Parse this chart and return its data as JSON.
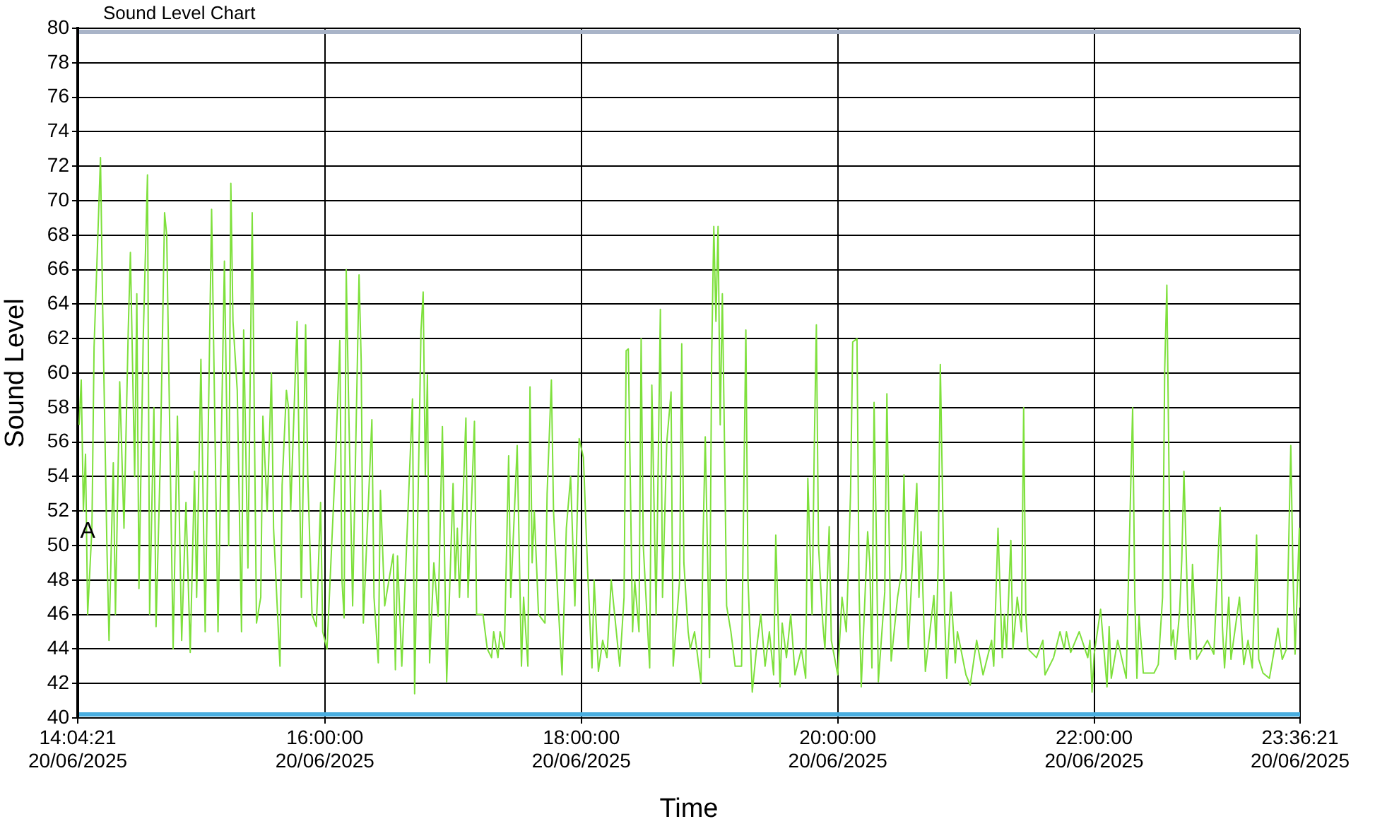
{
  "chart_data": {
    "type": "line",
    "title": "Sound Level Chart",
    "xlabel": "Time",
    "ylabel": "Sound Level",
    "x": [
      "2025-06-20T14:05",
      "2025-06-20T14:06",
      "2025-06-20T14:07",
      "2025-06-20T14:08",
      "2025-06-20T14:09",
      "2025-06-20T14:11",
      "2025-06-20T14:12",
      "2025-06-20T14:15",
      "2025-06-20T14:16",
      "2025-06-20T14:18",
      "2025-06-20T14:19",
      "2025-06-20T14:21",
      "2025-06-20T14:22",
      "2025-06-20T14:24",
      "2025-06-20T14:26",
      "2025-06-20T14:28",
      "2025-06-20T14:29",
      "2025-06-20T14:31",
      "2025-06-20T14:32",
      "2025-06-20T14:33",
      "2025-06-20T14:35",
      "2025-06-20T14:37",
      "2025-06-20T14:38",
      "2025-06-20T14:40",
      "2025-06-20T14:41",
      "2025-06-20T14:43",
      "2025-06-20T14:45",
      "2025-06-20T14:46",
      "2025-06-20T14:49",
      "2025-06-20T14:51",
      "2025-06-20T14:53",
      "2025-06-20T14:55",
      "2025-06-20T14:57",
      "2025-06-20T14:59",
      "2025-06-20T15:00",
      "2025-06-20T15:02",
      "2025-06-20T15:04",
      "2025-06-20T15:07",
      "2025-06-20T15:10",
      "2025-06-20T15:13",
      "2025-06-20T15:15",
      "2025-06-20T15:16",
      "2025-06-20T15:17",
      "2025-06-20T15:19",
      "2025-06-20T15:21",
      "2025-06-20T15:22",
      "2025-06-20T15:24",
      "2025-06-20T15:26",
      "2025-06-20T15:28",
      "2025-06-20T15:30",
      "2025-06-20T15:31",
      "2025-06-20T15:33",
      "2025-06-20T15:35",
      "2025-06-20T15:36",
      "2025-06-20T15:39",
      "2025-06-20T15:40",
      "2025-06-20T15:42",
      "2025-06-20T15:43",
      "2025-06-20T15:44",
      "2025-06-20T15:47",
      "2025-06-20T15:49",
      "2025-06-20T15:51",
      "2025-06-20T15:52",
      "2025-06-20T15:54",
      "2025-06-20T15:56",
      "2025-06-20T15:58",
      "2025-06-20T15:59",
      "2025-06-20T16:01",
      "2025-06-20T16:05",
      "2025-06-20T16:07",
      "2025-06-20T16:08",
      "2025-06-20T16:09",
      "2025-06-20T16:10",
      "2025-06-20T16:11",
      "2025-06-20T16:13",
      "2025-06-20T16:16",
      "2025-06-20T16:17",
      "2025-06-20T16:18",
      "2025-06-20T16:22",
      "2025-06-20T16:23",
      "2025-06-20T16:25",
      "2025-06-20T16:26",
      "2025-06-20T16:28",
      "2025-06-20T16:32",
      "2025-06-20T16:33",
      "2025-06-20T16:34",
      "2025-06-20T16:36",
      "2025-06-20T16:41",
      "2025-06-20T16:42",
      "2025-06-20T16:45",
      "2025-06-20T16:46",
      "2025-06-20T16:47",
      "2025-06-20T16:48",
      "2025-06-20T16:49",
      "2025-06-20T16:51",
      "2025-06-20T16:53",
      "2025-06-20T16:55",
      "2025-06-20T16:57",
      "2025-06-20T17:00",
      "2025-06-20T17:01",
      "2025-06-20T17:02",
      "2025-06-20T17:03",
      "2025-06-20T17:06",
      "2025-06-20T17:07",
      "2025-06-20T17:10",
      "2025-06-20T17:11",
      "2025-06-20T17:14",
      "2025-06-20T17:16",
      "2025-06-20T17:18",
      "2025-06-20T17:19",
      "2025-06-20T17:21",
      "2025-06-20T17:22",
      "2025-06-20T17:24",
      "2025-06-20T17:26",
      "2025-06-20T17:27",
      "2025-06-20T17:30",
      "2025-06-20T17:32",
      "2025-06-20T17:33",
      "2025-06-20T17:35",
      "2025-06-20T17:36",
      "2025-06-20T17:37",
      "2025-06-20T17:38",
      "2025-06-20T17:40",
      "2025-06-20T17:43",
      "2025-06-20T17:44",
      "2025-06-20T17:46",
      "2025-06-20T17:47",
      "2025-06-20T17:49",
      "2025-06-20T17:51",
      "2025-06-20T17:53",
      "2025-06-20T17:55",
      "2025-06-20T17:57",
      "2025-06-20T17:59",
      "2025-06-20T18:01",
      "2025-06-20T18:03",
      "2025-06-20T18:05",
      "2025-06-20T18:06",
      "2025-06-20T18:08",
      "2025-06-20T18:10",
      "2025-06-20T18:12",
      "2025-06-20T18:14",
      "2025-06-20T18:18",
      "2025-06-20T18:20",
      "2025-06-20T18:21",
      "2025-06-20T18:22",
      "2025-06-20T18:24",
      "2025-06-20T18:25",
      "2025-06-20T18:27",
      "2025-06-20T18:28",
      "2025-06-20T18:29",
      "2025-06-20T18:32",
      "2025-06-20T18:33",
      "2025-06-20T18:35",
      "2025-06-20T18:37",
      "2025-06-20T18:38",
      "2025-06-20T18:40",
      "2025-06-20T18:42",
      "2025-06-20T18:43",
      "2025-06-20T18:46",
      "2025-06-20T18:47",
      "2025-06-20T18:48",
      "2025-06-20T18:50",
      "2025-06-20T18:51",
      "2025-06-20T18:53",
      "2025-06-20T18:56",
      "2025-06-20T18:57",
      "2025-06-20T18:58",
      "2025-06-20T19:00",
      "2025-06-20T19:01",
      "2025-06-20T19:02",
      "2025-06-20T19:03",
      "2025-06-20T19:04",
      "2025-06-20T19:05",
      "2025-06-20T19:06",
      "2025-06-20T19:07",
      "2025-06-20T19:08",
      "2025-06-20T19:10",
      "2025-06-20T19:12",
      "2025-06-20T19:15",
      "2025-06-20T19:17",
      "2025-06-20T19:18",
      "2025-06-20T19:20",
      "2025-06-20T19:22",
      "2025-06-20T19:24",
      "2025-06-20T19:26",
      "2025-06-20T19:28",
      "2025-06-20T19:30",
      "2025-06-20T19:31",
      "2025-06-20T19:33",
      "2025-06-20T19:34",
      "2025-06-20T19:36",
      "2025-06-20T19:38",
      "2025-06-20T19:40",
      "2025-06-20T19:43",
      "2025-06-20T19:45",
      "2025-06-20T19:46",
      "2025-06-20T19:48",
      "2025-06-20T19:49",
      "2025-06-20T19:50",
      "2025-06-20T19:51",
      "2025-06-20T19:53",
      "2025-06-20T19:54",
      "2025-06-20T19:56",
      "2025-06-20T19:57",
      "2025-06-20T20:00",
      "2025-06-20T20:02",
      "2025-06-20T20:04",
      "2025-06-20T20:05",
      "2025-06-20T20:06",
      "2025-06-20T20:07",
      "2025-06-20T20:09",
      "2025-06-20T20:10",
      "2025-06-20T20:11",
      "2025-06-20T20:12",
      "2025-06-20T20:14",
      "2025-06-20T20:15",
      "2025-06-20T20:16",
      "2025-06-20T20:17",
      "2025-06-20T20:18",
      "2025-06-20T20:19",
      "2025-06-20T20:22",
      "2025-06-20T20:23",
      "2025-06-20T20:24",
      "2025-06-20T20:25",
      "2025-06-20T20:28",
      "2025-06-20T20:30",
      "2025-06-20T20:31",
      "2025-06-20T20:32",
      "2025-06-20T20:33",
      "2025-06-20T20:35",
      "2025-06-20T20:37",
      "2025-06-20T20:38",
      "2025-06-20T20:39",
      "2025-06-20T20:41",
      "2025-06-20T20:45",
      "2025-06-20T20:46",
      "2025-06-20T20:47",
      "2025-06-20T20:48",
      "2025-06-20T20:50",
      "2025-06-20T20:51",
      "2025-06-20T20:53",
      "2025-06-20T20:55",
      "2025-06-20T20:56",
      "2025-06-20T21:00",
      "2025-06-20T21:02",
      "2025-06-20T21:05",
      "2025-06-20T21:08",
      "2025-06-20T21:12",
      "2025-06-20T21:13",
      "2025-06-20T21:15",
      "2025-06-20T21:17",
      "2025-06-20T21:18",
      "2025-06-20T21:19",
      "2025-06-20T21:21",
      "2025-06-20T21:22",
      "2025-06-20T21:24",
      "2025-06-20T21:26",
      "2025-06-20T21:27",
      "2025-06-20T21:28",
      "2025-06-20T21:29",
      "2025-06-20T21:33",
      "2025-06-20T21:36",
      "2025-06-20T21:37",
      "2025-06-20T21:41",
      "2025-06-20T21:44",
      "2025-06-20T21:46",
      "2025-06-20T21:47",
      "2025-06-20T21:49",
      "2025-06-20T21:53",
      "2025-06-20T21:57",
      "2025-06-20T21:58",
      "2025-06-20T21:59",
      "2025-06-20T22:00",
      "2025-06-20T22:03",
      "2025-06-20T22:06",
      "2025-06-20T22:07",
      "2025-06-20T22:08",
      "2025-06-20T22:11",
      "2025-06-20T22:15",
      "2025-06-20T22:16",
      "2025-06-20T22:18",
      "2025-06-20T22:19",
      "2025-06-20T22:20",
      "2025-06-20T22:21",
      "2025-06-20T22:23",
      "2025-06-20T22:28",
      "2025-06-20T22:30",
      "2025-06-20T22:32",
      "2025-06-20T22:33",
      "2025-06-20T22:34",
      "2025-06-20T22:35",
      "2025-06-20T22:36",
      "2025-06-20T22:37",
      "2025-06-20T22:38",
      "2025-06-20T22:40",
      "2025-06-20T22:41",
      "2025-06-20T22:42",
      "2025-06-20T22:44",
      "2025-06-20T22:45",
      "2025-06-20T22:46",
      "2025-06-20T22:48",
      "2025-06-20T22:53",
      "2025-06-20T22:56",
      "2025-06-20T22:59",
      "2025-06-20T23:00",
      "2025-06-20T23:01",
      "2025-06-20T23:03",
      "2025-06-20T23:04",
      "2025-06-20T23:08",
      "2025-06-20T23:10",
      "2025-06-20T23:12",
      "2025-06-20T23:14",
      "2025-06-20T23:16",
      "2025-06-20T23:17",
      "2025-06-20T23:19",
      "2025-06-20T23:22",
      "2025-06-20T23:26",
      "2025-06-20T23:28",
      "2025-06-20T23:30",
      "2025-06-20T23:32",
      "2025-06-20T23:33",
      "2025-06-20T23:34",
      "2025-06-20T23:36",
      "2025-06-20T23:36:21"
    ],
    "values": [
      57,
      59.6,
      52,
      55.3,
      46,
      51,
      61.5,
      72.5,
      64,
      50,
      44.5,
      54.8,
      46,
      59.5,
      51,
      62.5,
      67,
      54,
      64.6,
      47.5,
      62,
      71.5,
      46,
      58,
      45.3,
      55,
      69.3,
      68,
      44,
      57.5,
      44.5,
      52.5,
      43.8,
      54.3,
      47,
      60.8,
      45,
      69.5,
      45,
      66.5,
      50,
      71,
      63,
      59,
      45,
      62.5,
      48.7,
      69.3,
      45.5,
      47,
      57.5,
      52,
      60,
      51,
      43,
      53.5,
      59,
      58,
      52,
      63,
      47,
      62.8,
      54,
      46,
      45.3,
      52.5,
      45,
      44,
      55,
      61.9,
      48,
      45.8,
      66,
      59,
      46.5,
      65.7,
      60.7,
      45.5,
      57.3,
      47,
      43.2,
      53.2,
      46.5,
      49.5,
      42.8,
      49.4,
      43,
      58.5,
      41.4,
      62.5,
      64.7,
      54.1,
      59.9,
      43.2,
      49,
      45.9,
      56.9,
      42.1,
      53.6,
      48,
      51,
      47,
      57.4,
      47,
      57.2,
      46,
      46,
      44,
      43.5,
      45,
      43.5,
      45,
      44,
      55.2,
      47,
      55.8,
      43,
      47,
      43,
      59.2,
      49,
      52,
      46,
      45.5,
      53,
      59.6,
      52,
      47,
      42.5,
      51,
      54,
      46.5,
      56.2,
      55.1,
      48.4,
      42.9,
      48,
      42.7,
      44.5,
      43.5,
      48,
      43,
      47,
      61.3,
      61.4,
      45,
      48,
      45,
      62,
      50,
      42.9,
      59.3,
      46,
      63.7,
      47,
      56,
      58.9,
      43,
      48,
      61.7,
      49,
      45,
      44,
      45,
      42,
      50.5,
      56.3,
      43.5,
      60.9,
      68.5,
      63,
      68.5,
      57,
      64.6,
      56,
      46.5,
      45,
      43,
      43,
      62.5,
      48,
      41.5,
      44,
      46,
      43,
      45,
      42.5,
      50.6,
      41.8,
      45.5,
      43.5,
      46,
      42.5,
      44,
      42.3,
      53.9,
      46,
      55.5,
      62.8,
      50,
      45.5,
      44,
      51.1,
      44.5,
      42.5,
      47,
      45,
      48.8,
      53.1,
      61.8,
      62,
      47.3,
      41.8,
      44.8,
      50.8,
      49,
      42.9,
      58.3,
      51,
      42.1,
      47.3,
      58.8,
      51,
      43.3,
      47,
      48.6,
      54.1,
      48,
      44,
      49,
      53.6,
      47,
      50.8,
      42.7,
      47.1,
      44,
      49,
      60.5,
      46,
      42.3,
      47.3,
      43.2,
      45,
      42.5,
      41.9,
      44.5,
      42.5,
      44.5,
      43,
      51,
      43.5,
      46,
      44,
      50.3,
      44,
      47,
      45,
      58,
      46,
      44,
      43.5,
      44.5,
      42.5,
      43.5,
      45,
      44,
      45,
      43.8,
      45,
      43.5,
      44.5,
      41.5,
      43.7,
      46.3,
      41.8,
      45.3,
      42.3,
      44.5,
      42.3,
      47.8,
      58,
      47,
      42.3,
      45.9,
      42.6,
      42.6,
      43.1,
      47,
      60.2,
      65.1,
      54.4,
      44.2,
      45.1,
      43.4,
      46.2,
      49.2,
      54.3,
      45.3,
      43.4,
      48.9,
      43.4,
      44.5,
      43.7,
      52.2,
      45.3,
      42.9,
      47,
      43.4,
      47,
      43.1,
      44.5,
      42.9,
      50.6,
      43.4,
      42.6,
      42.3,
      45.2,
      43.4,
      44,
      55.8,
      48.6,
      43.7,
      51,
      46.4
    ],
    "color": "#7ee03c",
    "xlim": [
      "2025-06-20T14:04:21",
      "2025-06-20T23:36:21"
    ],
    "xticks": [
      {
        "value": "2025-06-20T14:04:21",
        "label": "14:04:21\n20/06/2025"
      },
      {
        "value": "2025-06-20T16:00:00",
        "label": "16:00:00\n20/06/2025"
      },
      {
        "value": "2025-06-20T18:00:00",
        "label": "18:00:00\n20/06/2025"
      },
      {
        "value": "2025-06-20T20:00:00",
        "label": "20:00:00\n20/06/2025"
      },
      {
        "value": "2025-06-20T22:00:00",
        "label": "22:00:00\n20/06/2025"
      },
      {
        "value": "2025-06-20T23:36:21",
        "label": "23:36:21\n20/06/2025"
      }
    ],
    "ylim": [
      40,
      80
    ],
    "yticks": [
      40,
      42,
      44,
      46,
      48,
      50,
      52,
      54,
      56,
      58,
      60,
      62,
      64,
      66,
      68,
      70,
      72,
      74,
      76,
      78,
      80
    ],
    "grid": true,
    "ref_lines": [
      {
        "axis": "y",
        "value": 79.8,
        "color": "#a9b4c8"
      },
      {
        "axis": "y",
        "value": 40.2,
        "color": "#4aaee0"
      }
    ],
    "annotations": [
      {
        "text": "A",
        "x": "2025-06-20T14:09",
        "y": 50.8
      }
    ]
  }
}
